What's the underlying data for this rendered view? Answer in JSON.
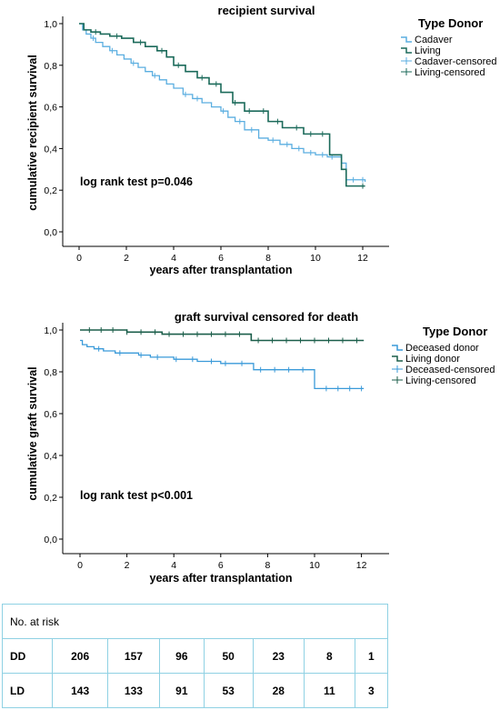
{
  "chart_data": [
    {
      "type": "line",
      "title": "recipient survival",
      "xlabel": "years after transplantation",
      "ylabel": "cumulative recipient survival",
      "xlim": [
        0,
        12
      ],
      "ylim": [
        0,
        1
      ],
      "xticks": [
        "0",
        "2",
        "4",
        "6",
        "8",
        "10",
        "12"
      ],
      "yticks": [
        "0,0",
        "0,2",
        "0,4",
        "0,6",
        "0,8",
        "1,0"
      ],
      "annotation": "log rank test p=0.046",
      "legend_title": "Type Donor",
      "legend_labels": [
        "Cadaver",
        "Living",
        "Cadaver-censored",
        "Living-censored"
      ],
      "series": [
        {
          "name": "Cadaver",
          "color": "#5aaee0",
          "x": [
            0,
            0.15,
            0.3,
            0.5,
            0.7,
            1.0,
            1.3,
            1.6,
            1.9,
            2.2,
            2.5,
            2.8,
            3.1,
            3.4,
            3.7,
            4.0,
            4.4,
            4.8,
            5.2,
            5.6,
            6.0,
            6.3,
            6.6,
            7.0,
            7.6,
            8.0,
            8.5,
            9.0,
            9.5,
            10.0,
            10.5,
            10.9,
            11.1,
            11.3,
            12.1
          ],
          "y": [
            1.0,
            0.97,
            0.95,
            0.93,
            0.91,
            0.89,
            0.87,
            0.85,
            0.83,
            0.81,
            0.79,
            0.77,
            0.75,
            0.73,
            0.71,
            0.69,
            0.66,
            0.64,
            0.62,
            0.6,
            0.58,
            0.55,
            0.53,
            0.49,
            0.45,
            0.44,
            0.42,
            0.4,
            0.38,
            0.37,
            0.36,
            0.36,
            0.33,
            0.25,
            0.24
          ],
          "censored_x": [
            0.6,
            1.4,
            2.3,
            3.2,
            4.5,
            5.0,
            6.1,
            6.8,
            7.3,
            8.2,
            8.8,
            9.3,
            9.8,
            10.3,
            10.7,
            11.6,
            12.0
          ]
        },
        {
          "name": "Living",
          "color": "#1b6a5a",
          "x": [
            0,
            0.2,
            0.5,
            0.9,
            1.3,
            1.8,
            2.3,
            2.8,
            3.3,
            3.7,
            4.0,
            4.5,
            5.0,
            5.5,
            6.0,
            6.5,
            7.0,
            7.5,
            8.0,
            8.6,
            9.0,
            9.5,
            10.0,
            10.6,
            11.1,
            11.3,
            12.1
          ],
          "y": [
            1.0,
            0.97,
            0.96,
            0.95,
            0.94,
            0.93,
            0.91,
            0.89,
            0.87,
            0.84,
            0.8,
            0.77,
            0.74,
            0.71,
            0.67,
            0.62,
            0.58,
            0.58,
            0.53,
            0.5,
            0.5,
            0.47,
            0.47,
            0.37,
            0.3,
            0.22,
            0.22
          ],
          "censored_x": [
            0.7,
            1.6,
            2.6,
            3.5,
            4.2,
            5.2,
            5.8,
            6.6,
            7.2,
            7.8,
            8.4,
            9.2,
            9.8,
            10.3,
            12.0
          ]
        }
      ]
    },
    {
      "type": "line",
      "title": "graft survival censored for death",
      "xlabel": "years after transplantation",
      "ylabel": "cumulative graft survival",
      "xlim": [
        0,
        12
      ],
      "ylim": [
        0,
        1
      ],
      "xticks": [
        "0",
        "2",
        "4",
        "6",
        "8",
        "10",
        "12"
      ],
      "yticks": [
        "0,0",
        "0,2",
        "0,4",
        "0,6",
        "0,8",
        "1,0"
      ],
      "annotation": "log rank test p<0.001",
      "legend_title": "Type Donor",
      "legend_labels": [
        "Deceased donor",
        "Living donor",
        "Deceased-censored",
        "Living-censored"
      ],
      "series": [
        {
          "name": "Deceased donor",
          "color": "#3a9ad9",
          "x": [
            0,
            0.1,
            0.3,
            0.6,
            1.0,
            1.5,
            2.0,
            2.5,
            3.0,
            3.5,
            4.0,
            4.5,
            5.0,
            5.5,
            6.0,
            6.5,
            7.0,
            7.4,
            8.0,
            8.5,
            9.0,
            10.0,
            10.4,
            11.0,
            12.1
          ],
          "y": [
            0.95,
            0.93,
            0.92,
            0.91,
            0.9,
            0.89,
            0.89,
            0.88,
            0.87,
            0.87,
            0.86,
            0.86,
            0.85,
            0.85,
            0.84,
            0.84,
            0.84,
            0.81,
            0.81,
            0.81,
            0.81,
            0.72,
            0.72,
            0.72,
            0.72
          ],
          "censored_x": [
            0.8,
            1.7,
            2.6,
            3.3,
            4.1,
            4.8,
            5.6,
            6.2,
            6.9,
            7.7,
            8.3,
            8.9,
            9.5,
            10.5,
            11.0,
            11.5,
            12.0
          ]
        },
        {
          "name": "Living donor",
          "color": "#1b5e4a",
          "x": [
            0,
            1.5,
            2.0,
            3.0,
            3.5,
            4.0,
            5.0,
            6.0,
            7.0,
            7.3,
            8.0,
            9.0,
            10.0,
            11.0,
            12.1
          ],
          "y": [
            1.0,
            1.0,
            0.99,
            0.99,
            0.98,
            0.98,
            0.98,
            0.98,
            0.98,
            0.95,
            0.95,
            0.95,
            0.95,
            0.95,
            0.95
          ],
          "censored_x": [
            0.4,
            0.9,
            1.4,
            2.0,
            2.6,
            3.2,
            3.8,
            4.4,
            5.0,
            5.6,
            6.2,
            6.8,
            7.6,
            8.2,
            8.8,
            9.4,
            10.0,
            10.6,
            11.2,
            11.8
          ]
        }
      ]
    }
  ],
  "risk_table": {
    "header": "No. at risk",
    "rows": [
      {
        "label": "DD",
        "values": [
          "206",
          "157",
          "96",
          "50",
          "23",
          "8",
          "1"
        ]
      },
      {
        "label": "LD",
        "values": [
          "143",
          "133",
          "91",
          "53",
          "28",
          "11",
          "3"
        ]
      }
    ]
  }
}
